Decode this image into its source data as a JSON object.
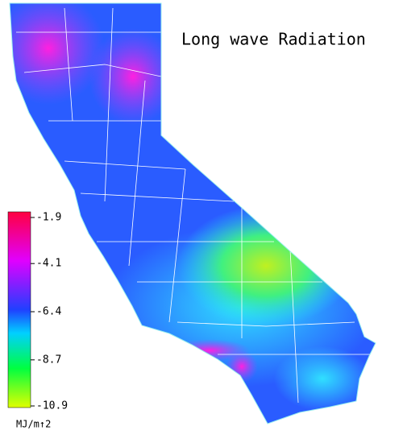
{
  "title": "Long wave Radiation",
  "colorbar": {
    "ticks": [
      -1.9,
      -4.1,
      -6.4,
      -8.7,
      -10.9
    ],
    "unit": "MJ/m↑2"
  }
}
